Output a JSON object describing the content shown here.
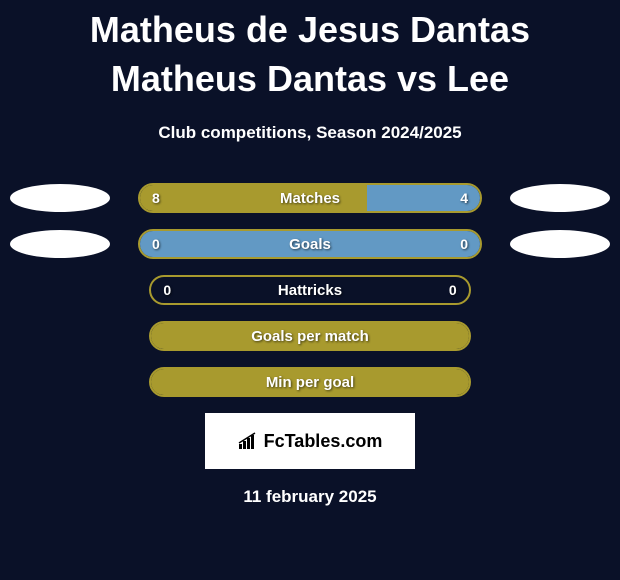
{
  "title": "Matheus de Jesus Dantas Matheus Dantas vs Lee",
  "subtitle": "Club competitions, Season 2024/2025",
  "date": "11 february 2025",
  "logo_text": "FcTables.com",
  "colors": {
    "background": "#0a1128",
    "border": "#a89a2e",
    "fill_left": "#a89a2e",
    "fill_right": "#6299c4",
    "text": "#ffffff"
  },
  "rows": [
    {
      "label": "Matches",
      "left_value": "8",
      "right_value": "4",
      "left_pct": 66.7,
      "right_pct": 33.3,
      "show_avatars": true,
      "show_values": true
    },
    {
      "label": "Goals",
      "left_value": "0",
      "right_value": "0",
      "left_pct": 0,
      "right_pct": 100,
      "show_avatars": true,
      "show_values": true
    },
    {
      "label": "Hattricks",
      "left_value": "0",
      "right_value": "0",
      "left_pct": 0,
      "right_pct": 0,
      "show_avatars": false,
      "show_values": true
    },
    {
      "label": "Goals per match",
      "left_value": "",
      "right_value": "",
      "left_pct": 100,
      "right_pct": 0,
      "show_avatars": false,
      "show_values": false
    },
    {
      "label": "Min per goal",
      "left_value": "",
      "right_value": "",
      "left_pct": 100,
      "right_pct": 0,
      "show_avatars": false,
      "show_values": false
    }
  ]
}
